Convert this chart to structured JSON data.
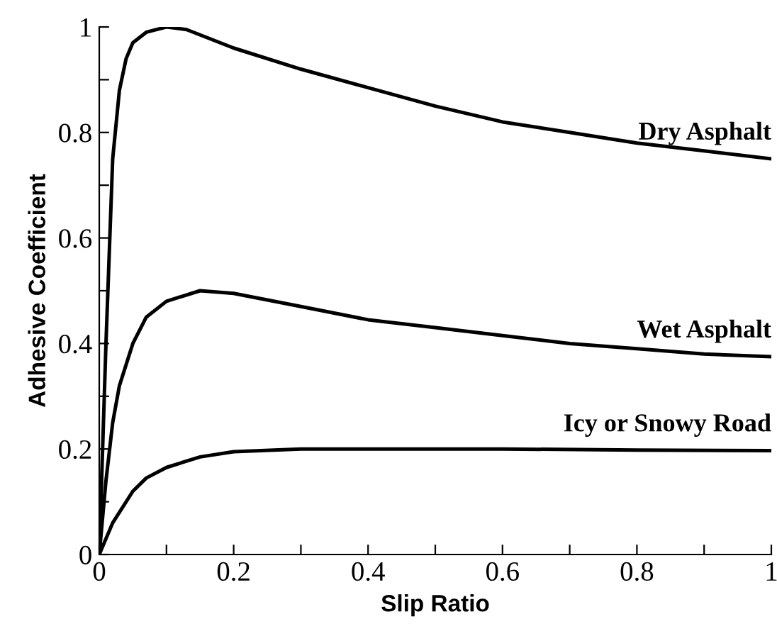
{
  "chart_data": {
    "type": "line",
    "xlabel": "Slip Ratio",
    "ylabel": "Adhesive Coefficient",
    "xlim": [
      0,
      1
    ],
    "ylim": [
      0,
      1
    ],
    "xticks": [
      0,
      {
        "value": 0.1,
        "label": null
      },
      0.2,
      {
        "value": 0.3,
        "label": null
      },
      0.4,
      {
        "value": 0.5,
        "label": null
      },
      0.6,
      {
        "value": 0.7,
        "label": null
      },
      0.8,
      {
        "value": 0.9,
        "label": null
      },
      1
    ],
    "yticks": [
      0,
      {
        "value": 0.1,
        "label": null
      },
      0.2,
      {
        "value": 0.3,
        "label": null
      },
      0.4,
      {
        "value": 0.5,
        "label": null
      },
      0.6,
      {
        "value": 0.7,
        "label": null
      },
      0.8,
      {
        "value": 0.9,
        "label": null
      },
      1
    ],
    "grid": false,
    "legend": false,
    "marker": "none",
    "line_style": "solid",
    "series": [
      {
        "name": "Dry Asphalt",
        "color": "#000000",
        "x": [
          0,
          0.01,
          0.02,
          0.03,
          0.04,
          0.05,
          0.07,
          0.1,
          0.13,
          0.2,
          0.3,
          0.4,
          0.5,
          0.6,
          0.7,
          0.8,
          0.9,
          1.0
        ],
        "values": [
          0,
          0.4,
          0.75,
          0.88,
          0.94,
          0.97,
          0.99,
          1.0,
          0.995,
          0.96,
          0.92,
          0.885,
          0.85,
          0.82,
          0.8,
          0.78,
          0.765,
          0.75
        ]
      },
      {
        "name": "Wet Asphalt",
        "color": "#000000",
        "x": [
          0,
          0.01,
          0.02,
          0.03,
          0.05,
          0.07,
          0.1,
          0.15,
          0.2,
          0.3,
          0.4,
          0.5,
          0.6,
          0.7,
          0.8,
          0.9,
          1.0
        ],
        "values": [
          0,
          0.14,
          0.25,
          0.32,
          0.4,
          0.45,
          0.48,
          0.5,
          0.495,
          0.47,
          0.445,
          0.43,
          0.415,
          0.4,
          0.39,
          0.38,
          0.375
        ]
      },
      {
        "name": "Icy or Snowy Road",
        "color": "#000000",
        "x": [
          0,
          0.02,
          0.05,
          0.07,
          0.1,
          0.15,
          0.2,
          0.3,
          0.4,
          0.6,
          0.8,
          1.0
        ],
        "values": [
          0,
          0.06,
          0.12,
          0.145,
          0.165,
          0.185,
          0.195,
          0.2,
          0.2,
          0.2,
          0.198,
          0.197
        ]
      }
    ]
  }
}
